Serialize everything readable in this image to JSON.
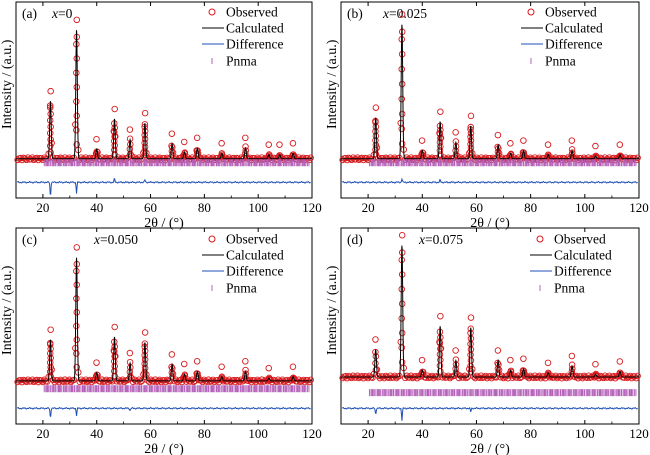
{
  "legend": {
    "observed": "Observed",
    "calculated": "Calculated",
    "difference": "Difference",
    "phase": "Pnma"
  },
  "colors": {
    "observed": "#d7191c",
    "calculated": "#000000",
    "difference": "#1f4fb5",
    "bragg": "#b35fb8"
  },
  "axes": {
    "xlabel": "2θ / (°)",
    "ylabel": "Intensity / (a.u.)",
    "xticks": [
      "20",
      "40",
      "60",
      "80",
      "100",
      "120"
    ]
  },
  "chart_data": [
    {
      "type": "line",
      "panel": "(a)",
      "composition": "x=0",
      "xlabel": "2θ / (°)",
      "ylabel": "Intensity / (a.u.)",
      "xlim": [
        10,
        120
      ],
      "peaks": [
        {
          "x": 22.8,
          "y": 0.42
        },
        {
          "x": 32.5,
          "y": 0.94
        },
        {
          "x": 40.0,
          "y": 0.07
        },
        {
          "x": 46.6,
          "y": 0.29
        },
        {
          "x": 52.4,
          "y": 0.14
        },
        {
          "x": 57.9,
          "y": 0.26
        },
        {
          "x": 68.0,
          "y": 0.11
        },
        {
          "x": 72.6,
          "y": 0.05
        },
        {
          "x": 77.4,
          "y": 0.08
        },
        {
          "x": 86.5,
          "y": 0.04
        },
        {
          "x": 95.3,
          "y": 0.08
        },
        {
          "x": 104.0,
          "y": 0.03
        },
        {
          "x": 108.0,
          "y": 0.03
        },
        {
          "x": 113.0,
          "y": 0.04
        }
      ],
      "diff_spikes": [
        {
          "x": 22.8,
          "d": -0.12
        },
        {
          "x": 32.5,
          "d": -0.09
        },
        {
          "x": 46.6,
          "d": 0.03
        },
        {
          "x": 57.9,
          "d": 0.02
        }
      ]
    },
    {
      "type": "line",
      "panel": "(b)",
      "composition": "x=0.025",
      "xlabel": "2θ / (°)",
      "ylabel": "Intensity / (a.u.)",
      "xlim": [
        10,
        120
      ],
      "peaks": [
        {
          "x": 22.8,
          "y": 0.3
        },
        {
          "x": 32.5,
          "y": 0.98
        },
        {
          "x": 40.0,
          "y": 0.06
        },
        {
          "x": 46.6,
          "y": 0.27
        },
        {
          "x": 52.4,
          "y": 0.12
        },
        {
          "x": 57.9,
          "y": 0.24
        },
        {
          "x": 68.0,
          "y": 0.1
        },
        {
          "x": 72.6,
          "y": 0.04
        },
        {
          "x": 77.4,
          "y": 0.06
        },
        {
          "x": 86.5,
          "y": 0.03
        },
        {
          "x": 95.3,
          "y": 0.06
        },
        {
          "x": 104.0,
          "y": 0.02
        },
        {
          "x": 113.0,
          "y": 0.03
        }
      ],
      "diff_spikes": [
        {
          "x": 32.5,
          "d": 0.03
        },
        {
          "x": 46.6,
          "d": 0.02
        }
      ]
    },
    {
      "type": "line",
      "panel": "(c)",
      "composition": "x=0.050",
      "xlabel": "2θ / (°)",
      "ylabel": "Intensity / (a.u.)",
      "xlim": [
        10,
        120
      ],
      "peaks": [
        {
          "x": 22.8,
          "y": 0.3
        },
        {
          "x": 32.5,
          "y": 0.9
        },
        {
          "x": 40.0,
          "y": 0.06
        },
        {
          "x": 46.6,
          "y": 0.32
        },
        {
          "x": 52.4,
          "y": 0.13
        },
        {
          "x": 57.9,
          "y": 0.28
        },
        {
          "x": 68.0,
          "y": 0.12
        },
        {
          "x": 72.6,
          "y": 0.05
        },
        {
          "x": 77.4,
          "y": 0.07
        },
        {
          "x": 86.5,
          "y": 0.03
        },
        {
          "x": 95.3,
          "y": 0.07
        },
        {
          "x": 104.0,
          "y": 0.02
        },
        {
          "x": 113.0,
          "y": 0.03
        }
      ],
      "diff_spikes": [
        {
          "x": 22.8,
          "d": -0.08
        },
        {
          "x": 32.5,
          "d": -0.06
        },
        {
          "x": 52.4,
          "d": -0.02
        }
      ]
    },
    {
      "type": "line",
      "panel": "(d)",
      "composition": "x=0.075",
      "xlabel": "2θ / (°)",
      "ylabel": "Intensity / (a.u.)",
      "xlim": [
        10,
        120
      ],
      "peaks": [
        {
          "x": 22.8,
          "y": 0.2
        },
        {
          "x": 32.5,
          "y": 0.96
        },
        {
          "x": 40.0,
          "y": 0.05
        },
        {
          "x": 46.6,
          "y": 0.37
        },
        {
          "x": 52.4,
          "y": 0.12
        },
        {
          "x": 57.9,
          "y": 0.36
        },
        {
          "x": 68.0,
          "y": 0.12
        },
        {
          "x": 72.6,
          "y": 0.05
        },
        {
          "x": 77.4,
          "y": 0.06
        },
        {
          "x": 86.5,
          "y": 0.03
        },
        {
          "x": 95.3,
          "y": 0.08
        },
        {
          "x": 104.0,
          "y": 0.02
        },
        {
          "x": 113.0,
          "y": 0.04
        }
      ],
      "diff_spikes": [
        {
          "x": 22.8,
          "d": -0.05
        },
        {
          "x": 32.5,
          "d": -0.1
        },
        {
          "x": 57.9,
          "d": -0.03
        }
      ]
    }
  ]
}
